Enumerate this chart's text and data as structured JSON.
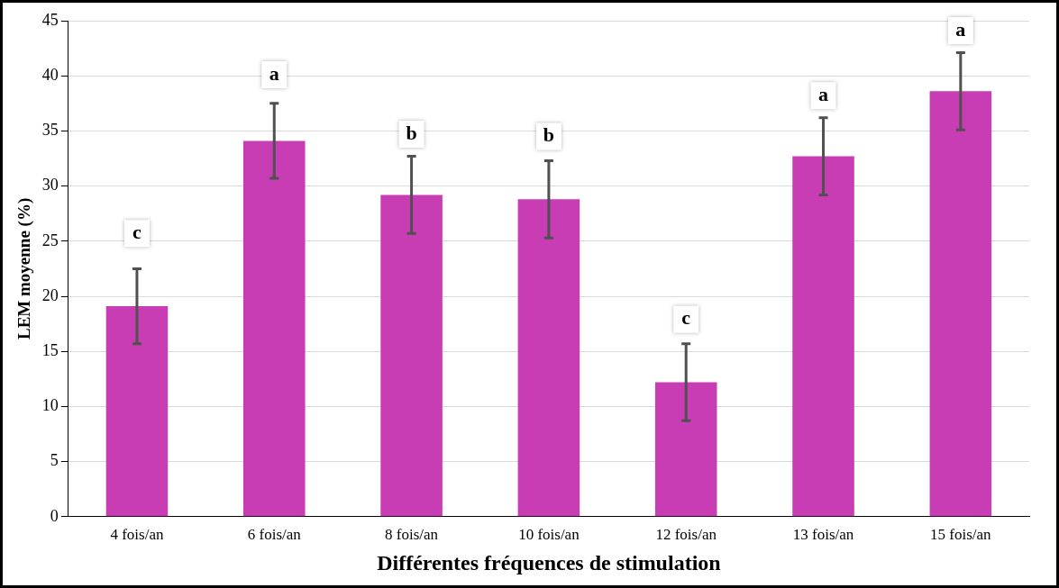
{
  "chart_data": {
    "type": "bar",
    "xlabel": "Différentes fréquences de stimulation",
    "ylabel": "LEM moyenne (%)",
    "categories": [
      "4 fois/an",
      "6 fois/an",
      "8 fois/an",
      "10 fois/an",
      "12 fois/an",
      "13 fois/an",
      "15 fois/an"
    ],
    "values": [
      19.1,
      34.1,
      29.2,
      28.8,
      12.2,
      32.7,
      38.6
    ],
    "errors": [
      3.4,
      3.4,
      3.5,
      3.5,
      3.5,
      3.5,
      3.5
    ],
    "color": "#c83cb4",
    "ylim": [
      0,
      45
    ],
    "yticks": [
      0,
      5,
      10,
      15,
      20,
      25,
      30,
      35,
      40,
      45
    ],
    "grid": "y",
    "legend": false,
    "annotations": [
      {
        "text": "c",
        "x": "4 fois/an",
        "y": 25.7
      },
      {
        "text": "a",
        "x": "6 fois/an",
        "y": 40.1
      },
      {
        "text": "b",
        "x": "8 fois/an",
        "y": 34.7
      },
      {
        "text": "b",
        "x": "10 fois/an",
        "y": 34.5
      },
      {
        "text": "c",
        "x": "12 fois/an",
        "y": 17.9
      },
      {
        "text": "a",
        "x": "13 fois/an",
        "y": 38.2
      },
      {
        "text": "a",
        "x": "15 fois/an",
        "y": 44.1
      }
    ]
  }
}
